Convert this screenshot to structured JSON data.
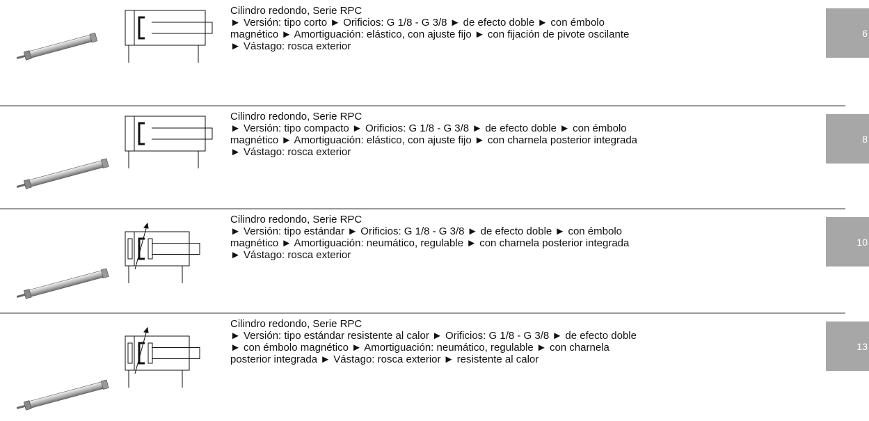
{
  "rows": [
    {
      "title": "Cilindro redondo, Serie RPC",
      "lines": [
        "► Versión: tipo corto ► Orificios: G 1/8 - G 3/8 ► de efecto doble ► con émbolo",
        "magnético ► Amortiguación: elástico, con ajuste fijo ► con fijación de pivote oscilante",
        "► Vástago: rosca exterior"
      ],
      "page": 6
    },
    {
      "title": "Cilindro redondo, Serie RPC",
      "lines": [
        "► Versión: tipo compacto ► Orificios: G 1/8 - G 3/8 ► de efecto doble ► con émbolo",
        "magnético ► Amortiguación: elástico, con ajuste fijo ► con charnela posterior integrada",
        "► Vástago: rosca exterior"
      ],
      "page": 8
    },
    {
      "title": "Cilindro redondo, Serie RPC",
      "lines": [
        "► Versión: tipo estándar ► Orificios: G 1/8 - G 3/8 ► de efecto doble ► con émbolo",
        "magnético ► Amortiguación: neumático, regulable ► con charnela posterior integrada",
        "► Vástago: rosca exterior"
      ],
      "page": 10
    },
    {
      "title": "Cilindro redondo, Serie RPC",
      "lines": [
        "► Versión: tipo estándar resistente al calor ► Orificios: G 1/8 - G 3/8 ► de efecto doble",
        "► con émbolo magnético ► Amortiguación: neumático, regulable ► con charnela",
        "posterior integrada ► Vástago: rosca exterior ► resistente al calor"
      ],
      "page": 13
    }
  ]
}
